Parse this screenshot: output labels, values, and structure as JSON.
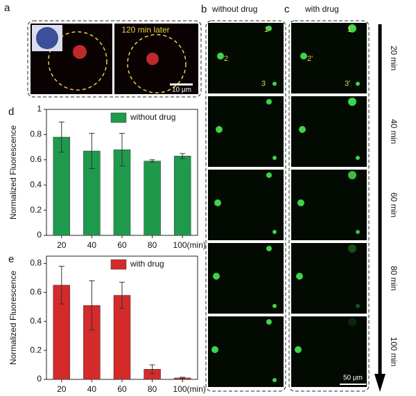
{
  "figure": {
    "panel_labels": [
      "a",
      "b",
      "c",
      "d",
      "e"
    ],
    "panel_a": {
      "caption": "120 min later",
      "scale": "10 μm"
    },
    "panel_b": {
      "title": "without drug",
      "cells": [
        "1",
        "2",
        "3"
      ]
    },
    "panel_c": {
      "title": "with drug",
      "cells": [
        "1'",
        "2'",
        "3'"
      ],
      "scale": "50 μm"
    },
    "times": [
      "20 min",
      "40 min",
      "60 min",
      "80 min",
      "100 min"
    ]
  },
  "chart_data": [
    {
      "type": "bar",
      "ylabel": "Normalized Fluorescence",
      "legend": "without drug",
      "legend_position": "upper right",
      "color": "#1f9a4c",
      "categories": [
        "20",
        "40",
        "60",
        "80",
        "100(min)"
      ],
      "values": [
        0.78,
        0.67,
        0.68,
        0.59,
        0.63
      ],
      "errors": [
        0.12,
        0.14,
        0.13,
        0.01,
        0.02
      ],
      "ylim": [
        0,
        1
      ],
      "yticks": [
        0,
        0.2,
        0.4,
        0.6,
        0.8,
        1
      ]
    },
    {
      "type": "bar",
      "ylabel": "Normalized Fluorescence",
      "legend": "with drug",
      "legend_position": "upper right",
      "color": "#d42a2a",
      "categories": [
        "20",
        "40",
        "60",
        "80",
        "100(min)"
      ],
      "values": [
        0.65,
        0.51,
        0.58,
        0.07,
        0.01
      ],
      "errors": [
        0.13,
        0.17,
        0.09,
        0.03,
        0.005
      ],
      "ylim": [
        0,
        0.85
      ],
      "yticks": [
        0,
        0.2,
        0.4,
        0.6,
        0.8
      ]
    }
  ]
}
